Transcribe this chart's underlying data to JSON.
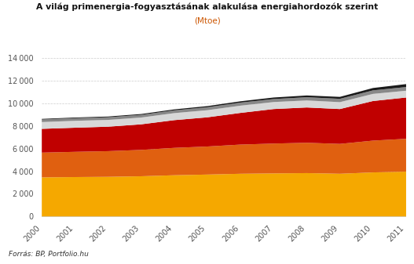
{
  "title_line1": "A világ primenergia-fogyasztásának alakulása energiahordozók szerint",
  "title_line2": "(Mtoe)",
  "years": [
    2000,
    2001,
    2002,
    2003,
    2004,
    2005,
    2006,
    2007,
    2008,
    2009,
    2010,
    2011
  ],
  "series": {
    "Olaj": [
      3490,
      3520,
      3540,
      3590,
      3680,
      3740,
      3810,
      3840,
      3870,
      3810,
      3930,
      4000
    ],
    "Földgáz": [
      2190,
      2230,
      2270,
      2330,
      2420,
      2480,
      2580,
      2640,
      2680,
      2640,
      2810,
      2900
    ],
    "Szén": [
      2100,
      2130,
      2160,
      2260,
      2450,
      2580,
      2800,
      3050,
      3120,
      3080,
      3500,
      3650
    ],
    "Nukleáris energia": [
      600,
      610,
      600,
      600,
      620,
      630,
      640,
      620,
      620,
      610,
      630,
      600
    ],
    "Víz": [
      225,
      230,
      235,
      235,
      245,
      260,
      270,
      265,
      285,
      295,
      310,
      325
    ],
    "Megújulók": [
      55,
      60,
      65,
      75,
      85,
      100,
      115,
      135,
      155,
      170,
      210,
      260
    ]
  },
  "colors": {
    "Olaj": "#F5A800",
    "Földgáz": "#E06010",
    "Szén": "#C00000",
    "Nukleáris energia": "#D8D8D8",
    "Víz": "#888888",
    "Megújulók": "#1A1A1A"
  },
  "ylim": [
    0,
    14000
  ],
  "yticks": [
    0,
    2000,
    4000,
    6000,
    8000,
    10000,
    12000,
    14000
  ],
  "background_color": "#FFFFFF",
  "source_text": "Forrás: BP, Portfolio.hu",
  "subtitle_color": "#CC5500"
}
